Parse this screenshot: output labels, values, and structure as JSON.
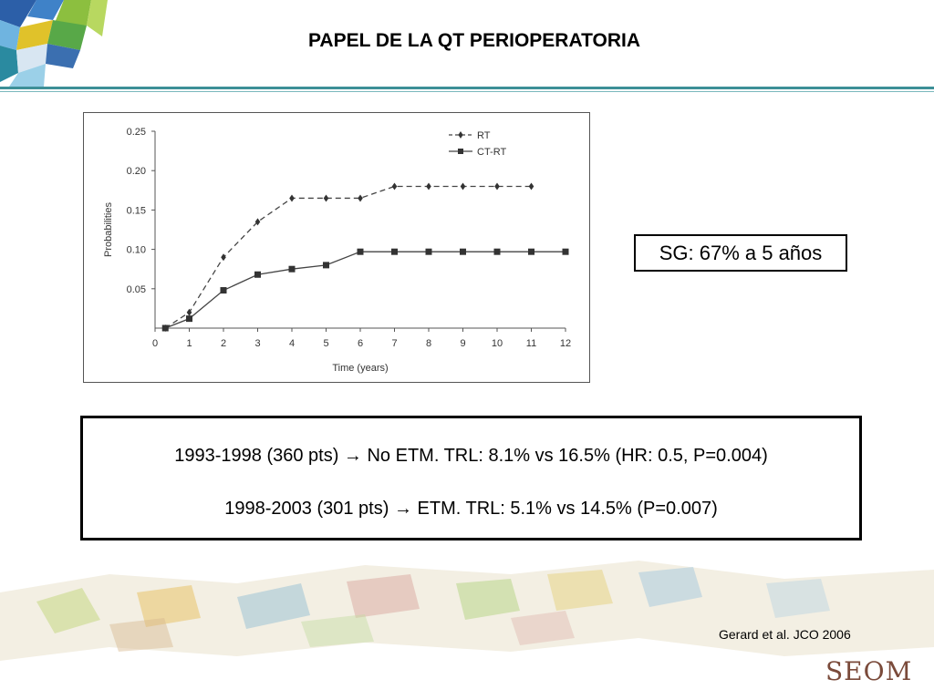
{
  "slide": {
    "title": "PAPEL DE LA QT PERIOPERATORIA",
    "sg_box": "SG: 67% a 5 años",
    "study_lines": [
      "1993-1998 (360 pts) → No ETM. TRL: 8.1% vs 16.5% (HR: 0.5, P=0.004)",
      "1998-2003 (301 pts) → ETM. TRL: 5.1% vs 14.5% (P=0.007)"
    ],
    "citation": "Gerard et al. JCO 2006",
    "logo_text": "SEOM",
    "accent_color": "#3d8f97"
  },
  "chart_data": {
    "type": "line",
    "xlabel": "Time (years)",
    "ylabel": "Probabilities",
    "xlim": [
      0,
      12
    ],
    "ylim": [
      0,
      0.25
    ],
    "x_ticks": [
      "0",
      "1",
      "2",
      "3",
      "4",
      "5",
      "6",
      "7",
      "8",
      "9",
      "10",
      "11",
      "12"
    ],
    "y_ticks": [
      "0.05",
      "0.10",
      "0.15",
      "0.20",
      "0.25"
    ],
    "legend_position": "top-right",
    "series": [
      {
        "name": "RT",
        "style": "dashed",
        "marker": "diamond",
        "x": [
          0.3,
          1,
          2,
          3,
          4,
          5,
          6,
          7,
          8,
          9,
          10,
          11
        ],
        "y": [
          0.0,
          0.02,
          0.09,
          0.135,
          0.165,
          0.165,
          0.165,
          0.18,
          0.18,
          0.18,
          0.18,
          0.18
        ]
      },
      {
        "name": "CT-RT",
        "style": "solid",
        "marker": "square",
        "x": [
          0.3,
          1,
          2,
          3,
          4,
          5,
          6,
          7,
          8,
          9,
          10,
          11,
          12
        ],
        "y": [
          0.0,
          0.012,
          0.048,
          0.068,
          0.075,
          0.08,
          0.097,
          0.097,
          0.097,
          0.097,
          0.097,
          0.097,
          0.097
        ]
      }
    ]
  }
}
